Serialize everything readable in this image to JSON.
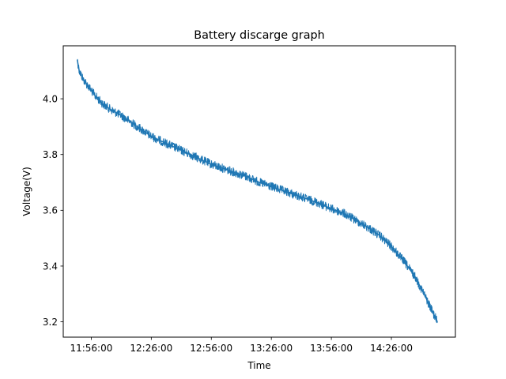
{
  "chart_data": {
    "type": "line",
    "title": "Battery discarge graph",
    "xlabel": "Time",
    "ylabel": "Voltage(V)",
    "x_ticks": [
      "11:56:00",
      "12:26:00",
      "12:56:00",
      "13:26:00",
      "13:56:00",
      "14:26:00"
    ],
    "y_ticks": [
      "3.2",
      "3.4",
      "3.6",
      "3.8",
      "4.0"
    ],
    "xlim": [
      "11:42:00",
      "14:58:00"
    ],
    "ylim": [
      3.145,
      4.19
    ],
    "grid": false,
    "legend": "none",
    "series": [
      {
        "color": "#1f77b4",
        "points": [
          [
            "11:49:00",
            4.14
          ],
          [
            "11:50:00",
            4.1
          ],
          [
            "11:52:00",
            4.07
          ],
          [
            "11:55:00",
            4.04
          ],
          [
            "11:58:00",
            4.01
          ],
          [
            "12:02:00",
            3.98
          ],
          [
            "12:06:00",
            3.96
          ],
          [
            "12:11:00",
            3.94
          ],
          [
            "12:16:00",
            3.915
          ],
          [
            "12:21:00",
            3.89
          ],
          [
            "12:26:00",
            3.865
          ],
          [
            "12:32:00",
            3.845
          ],
          [
            "12:38:00",
            3.825
          ],
          [
            "12:44:00",
            3.805
          ],
          [
            "12:50:00",
            3.785
          ],
          [
            "12:56:00",
            3.765
          ],
          [
            "13:02:00",
            3.75
          ],
          [
            "13:08:00",
            3.735
          ],
          [
            "13:14:00",
            3.72
          ],
          [
            "13:20:00",
            3.7
          ],
          [
            "13:26:00",
            3.685
          ],
          [
            "13:32:00",
            3.67
          ],
          [
            "13:38:00",
            3.655
          ],
          [
            "13:44:00",
            3.64
          ],
          [
            "13:50:00",
            3.625
          ],
          [
            "13:56:00",
            3.605
          ],
          [
            "14:02:00",
            3.59
          ],
          [
            "14:08:00",
            3.565
          ],
          [
            "14:14:00",
            3.54
          ],
          [
            "14:20:00",
            3.51
          ],
          [
            "14:26:00",
            3.47
          ],
          [
            "14:32:00",
            3.42
          ],
          [
            "14:38:00",
            3.36
          ],
          [
            "14:43:00",
            3.29
          ],
          [
            "14:47:00",
            3.23
          ],
          [
            "14:49:00",
            3.2
          ]
        ]
      }
    ]
  }
}
